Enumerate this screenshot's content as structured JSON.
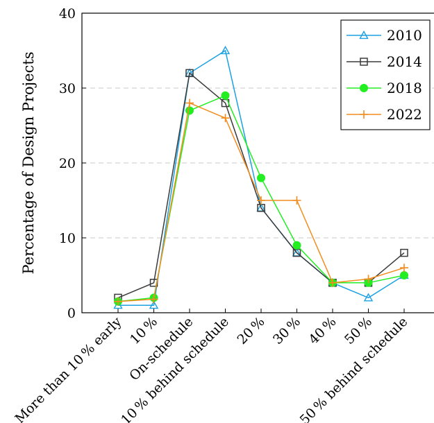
{
  "chart_data": {
    "type": "line",
    "title": "",
    "xlabel": "",
    "ylabel": "Percentage of Design Projects",
    "ylim": [
      0,
      40
    ],
    "yticks": [
      0,
      10,
      20,
      30,
      40
    ],
    "categories": [
      "More than 10 % early",
      "10 %",
      "On-schedule",
      "10 % behind schedule",
      "20 %",
      "30 %",
      "40 %",
      "50 %",
      ">50 % behind schedule"
    ],
    "grid": "horizontal-dashed",
    "legend_position": "top-right",
    "series": [
      {
        "name": "2010",
        "color": "#1ba1e2",
        "marker": "triangle",
        "values": [
          1,
          1,
          32,
          35,
          14,
          8,
          4,
          2,
          5
        ]
      },
      {
        "name": "2014",
        "color": "#3a3a3a",
        "marker": "square",
        "values": [
          2,
          4,
          32,
          28,
          14,
          8,
          4,
          4,
          8
        ]
      },
      {
        "name": "2018",
        "color": "#22ee22",
        "marker": "circle",
        "values": [
          1.5,
          2,
          27,
          29,
          18,
          9,
          4,
          4,
          5
        ]
      },
      {
        "name": "2022",
        "color": "#f28c1e",
        "marker": "plus",
        "values": [
          1.5,
          1.8,
          28,
          26,
          15,
          15,
          4,
          4.5,
          6
        ]
      }
    ]
  }
}
